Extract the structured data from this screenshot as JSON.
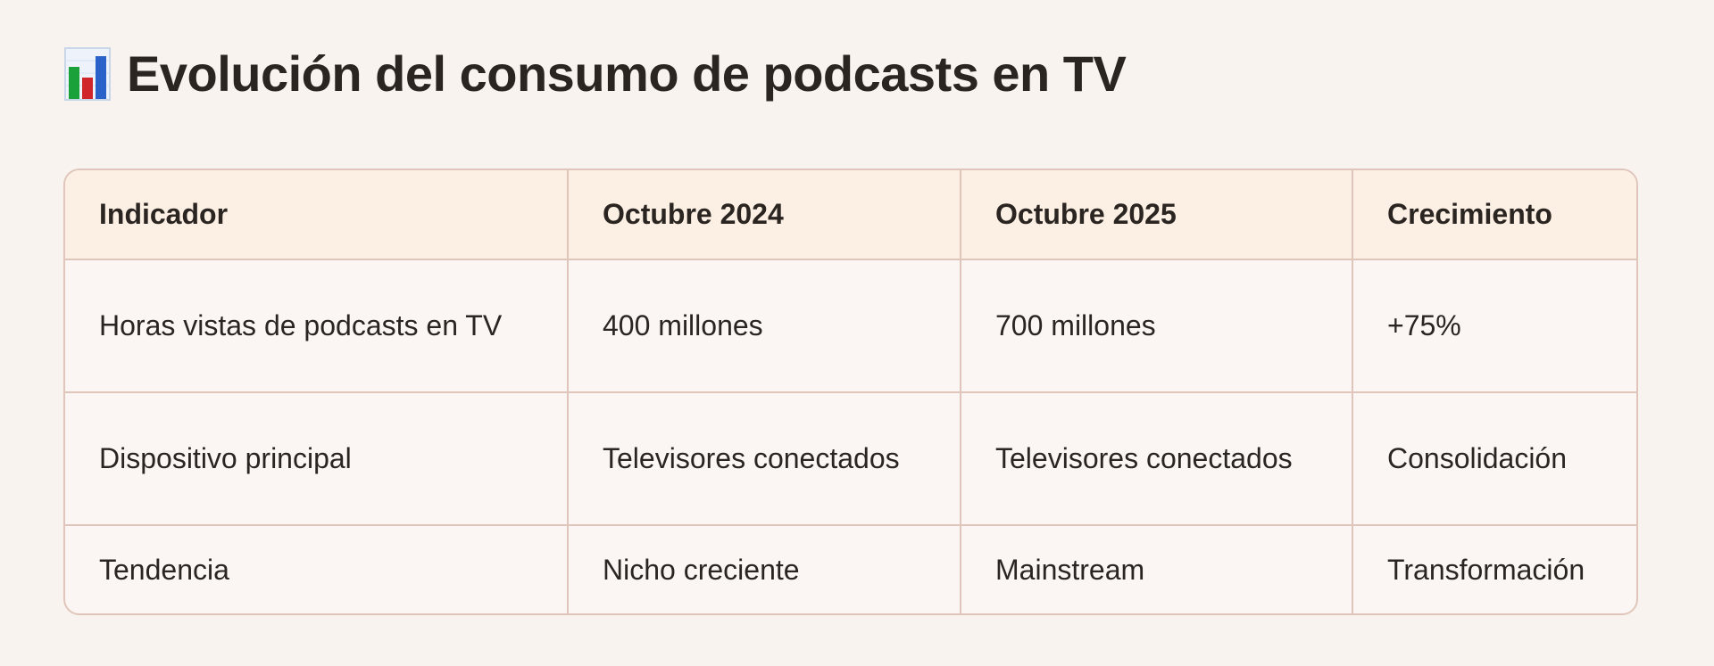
{
  "header": {
    "icon": "bar-chart-icon",
    "title": "Evolución del consumo de podcasts en TV"
  },
  "table": {
    "columns": [
      "Indicador",
      "Octubre 2024",
      "Octubre 2025",
      "Crecimiento"
    ],
    "rows": [
      [
        "Horas vistas de podcasts en TV",
        "400 millones",
        "700 millones",
        "+75%"
      ],
      [
        "Dispositivo principal",
        "Televisores conectados",
        "Televisores conectados",
        "Consolidación"
      ],
      [
        "Tendencia",
        "Nicho creciente",
        "Mainstream",
        "Transformación"
      ]
    ]
  },
  "colors": {
    "background": "#f9f3ef",
    "header_row": "#fcefe3",
    "border": "#e0c6ba",
    "text": "#2b2522",
    "icon_green": "#1aa13a",
    "icon_red": "#d0262b",
    "icon_blue": "#2a62c9"
  }
}
